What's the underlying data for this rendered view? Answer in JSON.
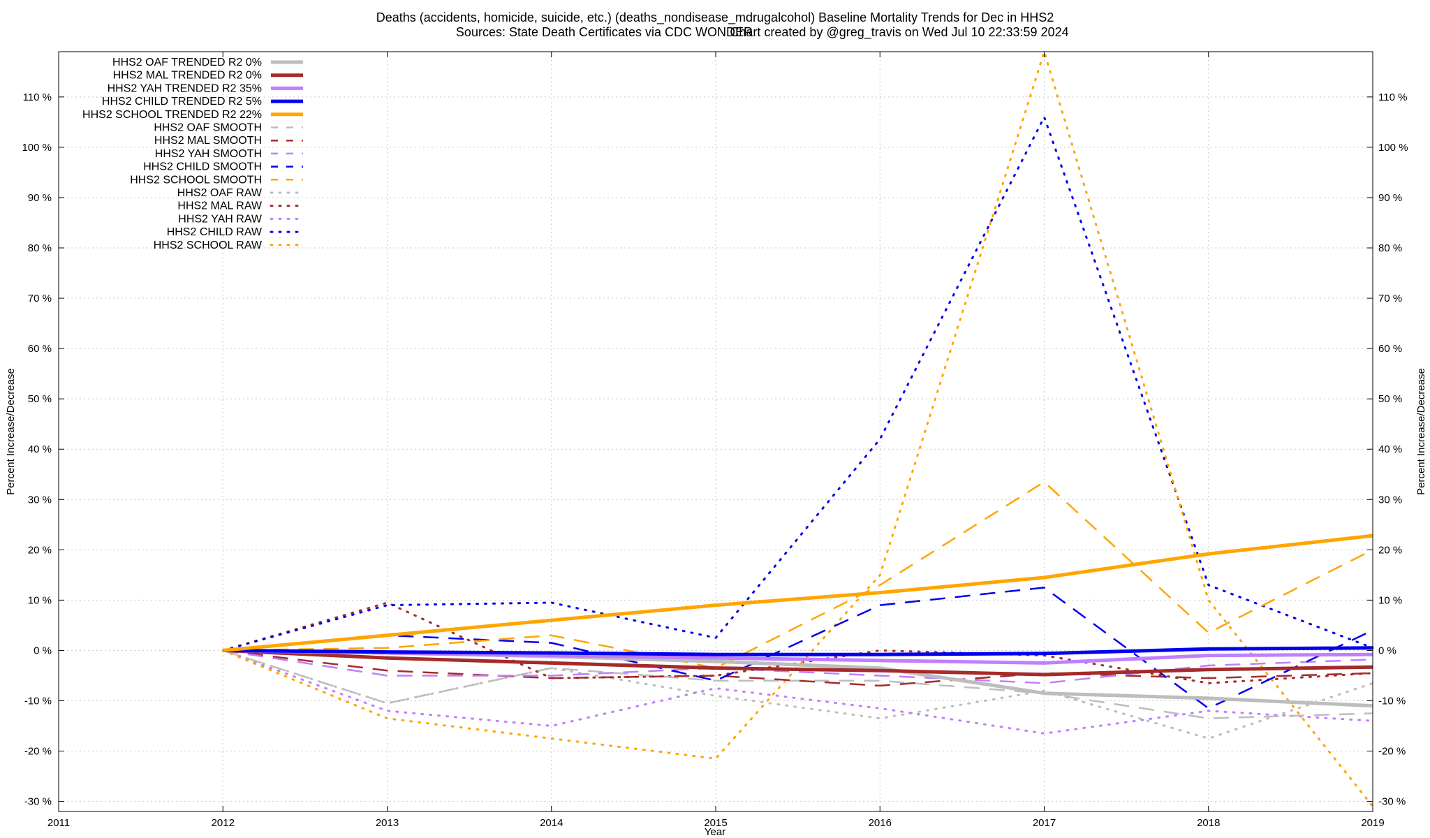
{
  "chart_data": {
    "type": "line",
    "title": "Deaths (accidents, homicide, suicide, etc.) (deaths_nondisease_mdrugalcohol)  Baseline Mortality Trends for Dec in HHS2",
    "subtitle_left": "Sources: State Death Certificates via CDC WONDER.",
    "subtitle_right": "Chart created by @greg_travis on Wed Jul 10 22:33:59 2024",
    "xlabel": "Year",
    "ylabel_left": "Percent Increase/Decrease",
    "ylabel_right": "Percent Increase/Decrease",
    "xlim": [
      2011,
      2019
    ],
    "ylim": [
      -32,
      119
    ],
    "x_ticks": [
      "2011",
      "2012",
      "2013",
      "2014",
      "2015",
      "2016",
      "2017",
      "2018",
      "2019"
    ],
    "y_ticks_left": [
      "-30 %",
      "-20 %",
      "-10 %",
      "0 %",
      "10 %",
      "20 %",
      "30 %",
      "40 %",
      "50 %",
      "60 %",
      "70 %",
      "80 %",
      "90 %",
      "100 %",
      "110 %"
    ],
    "y_ticks_right": [
      "-30 %",
      "-20 %",
      "-10 %",
      "0 %",
      "10 %",
      "20 %",
      "30 %",
      "40 %",
      "50 %",
      "60 %",
      "70 %",
      "80 %",
      "90 %",
      "100 %",
      "110 %"
    ],
    "grid": true,
    "legend_position": "top-left",
    "x": [
      2012,
      2013,
      2014,
      2015,
      2016,
      2017,
      2018,
      2019
    ],
    "series": [
      {
        "name": "HHS2 OAF TRENDED R2",
        "r2": "0%",
        "color": "#bdbdbd",
        "style": "solid",
        "values": [
          0,
          -0.5,
          -1.2,
          -2.2,
          -3.5,
          -8.5,
          -9.5,
          -11
        ]
      },
      {
        "name": "HHS2 MAL TRENDED R2",
        "r2": "0%",
        "color": "#a52a2a",
        "style": "solid",
        "values": [
          0,
          -1.5,
          -2.5,
          -3.5,
          -4,
          -4.8,
          -3.8,
          -3.3
        ]
      },
      {
        "name": "HHS2 YAH TRENDED R2",
        "r2": "35%",
        "color": "#bf7fff",
        "style": "solid",
        "values": [
          0,
          -0.5,
          -1,
          -1.5,
          -2,
          -2.5,
          -1,
          -0.8
        ]
      },
      {
        "name": "HHS2 CHILD TRENDED R2",
        "r2": "5%",
        "color": "#0000ee",
        "style": "solid",
        "values": [
          0,
          -0.3,
          -0.5,
          -0.8,
          -0.8,
          -0.6,
          0.3,
          0.5
        ]
      },
      {
        "name": "HHS2 SCHOOL TRENDED R2",
        "r2": "22%",
        "color": "#ffa500",
        "style": "solid",
        "values": [
          0,
          3,
          6,
          9,
          11.5,
          14.5,
          19.2,
          22.8
        ]
      },
      {
        "name": "HHS2 OAF SMOOTH",
        "color": "#bdbdbd",
        "style": "dash",
        "values": [
          0,
          -10.5,
          -3.5,
          -6,
          -6,
          -8.5,
          -13.5,
          -12.5
        ]
      },
      {
        "name": "HHS2 MAL SMOOTH",
        "color": "#a52a2a",
        "style": "dash",
        "values": [
          0,
          -4,
          -5.5,
          -5,
          -7,
          -4.5,
          -5.5,
          -4.5
        ]
      },
      {
        "name": "HHS2 YAH SMOOTH",
        "color": "#bf7fff",
        "style": "dash",
        "values": [
          0,
          -5,
          -5,
          -3.5,
          -5,
          -6.5,
          -3,
          -1.8
        ]
      },
      {
        "name": "HHS2 CHILD SMOOTH",
        "color": "#0000ee",
        "style": "dash",
        "values": [
          0,
          3,
          1.5,
          -6,
          9,
          12.5,
          -11.5,
          4
        ]
      },
      {
        "name": "HHS2 SCHOOL SMOOTH",
        "color": "#ffa500",
        "style": "dash",
        "values": [
          0,
          0.5,
          3,
          -3.5,
          13,
          33.5,
          3.5,
          20
        ]
      },
      {
        "name": "HHS2 OAF RAW",
        "color": "#bdbdbd",
        "style": "dot",
        "values": [
          0,
          -10.5,
          -3.5,
          -9,
          -13.5,
          -8,
          -17.5,
          -6.5
        ]
      },
      {
        "name": "HHS2 MAL RAW",
        "color": "#a52a2a",
        "style": "dot",
        "values": [
          0,
          9.5,
          -5.5,
          -5,
          0,
          -1,
          -6.5,
          -4.5
        ]
      },
      {
        "name": "HHS2 YAH RAW",
        "color": "#bf7fff",
        "style": "dot",
        "values": [
          0,
          -12,
          -15,
          -7.5,
          -11.5,
          -16.5,
          -12,
          -14
        ]
      },
      {
        "name": "HHS2 CHILD RAW",
        "color": "#0000ee",
        "style": "dot",
        "values": [
          0,
          9,
          9.5,
          2.5,
          42,
          106,
          13,
          0.5
        ]
      },
      {
        "name": "HHS2 SCHOOL RAW",
        "color": "#ffa500",
        "style": "dot",
        "values": [
          0,
          -13.5,
          -17.5,
          -21.5,
          15,
          119,
          10,
          -31
        ]
      }
    ]
  }
}
